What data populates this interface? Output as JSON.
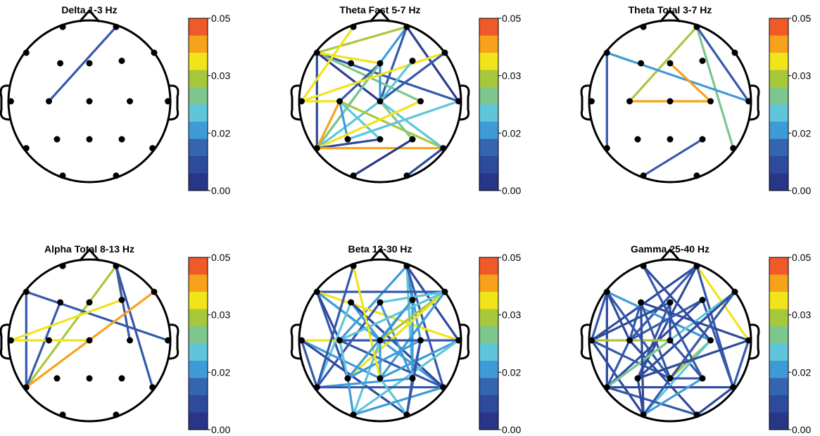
{
  "colorbar": {
    "ticks": [
      "0.05",
      "0.03",
      "0.02",
      "0.00"
    ],
    "colors": [
      "#f05a28",
      "#f7a21b",
      "#f1e41a",
      "#a8c83c",
      "#7dc68e",
      "#5fc5da",
      "#3f9bd8",
      "#3465b0",
      "#2d4a9c",
      "#273686"
    ]
  },
  "node_color": "#000000",
  "panels": [
    {
      "title": "Delta 1-3 Hz",
      "edges": [
        {
          "a": 1,
          "b": 8,
          "c": "#3458ac"
        }
      ]
    },
    {
      "title": "Theta Fast 5-7 Hz",
      "edges": [
        {
          "a": 1,
          "b": 11,
          "c": "#2d3c90"
        },
        {
          "a": 1,
          "b": 12,
          "c": "#3f9bd8"
        },
        {
          "a": 1,
          "b": 9,
          "c": "#3458ac"
        },
        {
          "a": 1,
          "b": 2,
          "c": "#a8c83c"
        },
        {
          "a": 2,
          "b": 12,
          "c": "#2d4a9c"
        },
        {
          "a": 2,
          "b": 11,
          "c": "#3458ac"
        },
        {
          "a": 2,
          "b": 10,
          "c": "#7dc68e"
        },
        {
          "a": 2,
          "b": 9,
          "c": "#2d3c90"
        },
        {
          "a": 2,
          "b": 4,
          "c": "#f1e41a"
        },
        {
          "a": 4,
          "b": 8,
          "c": "#3458ac"
        },
        {
          "a": 4,
          "b": 9,
          "c": "#3f9bd8"
        },
        {
          "a": 4,
          "b": 12,
          "c": "#7dc68e"
        },
        {
          "a": 6,
          "b": 12,
          "c": "#5fc5da"
        },
        {
          "a": 6,
          "b": 7,
          "c": "#f1e41a"
        },
        {
          "a": 6,
          "b": 9,
          "c": "#3458ac"
        },
        {
          "a": 8,
          "b": 12,
          "c": "#f7a21b"
        },
        {
          "a": 8,
          "b": 13,
          "c": "#3f9bd8"
        },
        {
          "a": 8,
          "b": 14,
          "c": "#5fc5da"
        },
        {
          "a": 8,
          "b": 16,
          "c": "#a8c83c"
        },
        {
          "a": 8,
          "b": 7,
          "c": "#f1e41a"
        },
        {
          "a": 9,
          "b": 15,
          "c": "#7dc68e"
        },
        {
          "a": 9,
          "b": 16,
          "c": "#5fc5da"
        },
        {
          "a": 10,
          "b": 12,
          "c": "#f1e41a"
        },
        {
          "a": 11,
          "b": 13,
          "c": "#5fc5da"
        },
        {
          "a": 12,
          "b": 14,
          "c": "#2d4a9c"
        },
        {
          "a": 12,
          "b": 16,
          "c": "#f7a21b"
        },
        {
          "a": 9,
          "b": 5,
          "c": "#5fc5da"
        },
        {
          "a": 15,
          "b": 17,
          "c": "#273686"
        },
        {
          "a": 16,
          "b": 18,
          "c": "#2d4a9c"
        },
        {
          "a": 0,
          "b": 7,
          "c": "#f1e41a"
        }
      ]
    },
    {
      "title": "Theta Total 3-7 Hz",
      "edges": [
        {
          "a": 1,
          "b": 8,
          "c": "#a8c83c"
        },
        {
          "a": 1,
          "b": 16,
          "c": "#7dc68e"
        },
        {
          "a": 1,
          "b": 11,
          "c": "#3458ac"
        },
        {
          "a": 2,
          "b": 12,
          "c": "#3458ac"
        },
        {
          "a": 2,
          "b": 11,
          "c": "#3f9bd8"
        },
        {
          "a": 4,
          "b": 10,
          "c": "#f7a21b"
        },
        {
          "a": 8,
          "b": 10,
          "c": "#f7a21b"
        },
        {
          "a": 15,
          "b": 17,
          "c": "#3458ac"
        }
      ]
    },
    {
      "title": "Alpha Total 8-13 Hz",
      "edges": [
        {
          "a": 1,
          "b": 5,
          "c": "#f1e41a"
        },
        {
          "a": 1,
          "b": 10,
          "c": "#3458ac"
        },
        {
          "a": 1,
          "b": 12,
          "c": "#a8c83c"
        },
        {
          "a": 1,
          "b": 16,
          "c": "#3458ac"
        },
        {
          "a": 2,
          "b": 12,
          "c": "#3458ac"
        },
        {
          "a": 2,
          "b": 11,
          "c": "#3458ac"
        },
        {
          "a": 3,
          "b": 12,
          "c": "#3458ac"
        },
        {
          "a": 5,
          "b": 7,
          "c": "#f1e41a"
        },
        {
          "a": 12,
          "b": 6,
          "c": "#f7a21b"
        },
        {
          "a": 7,
          "b": 9,
          "c": "#f1e41a"
        }
      ]
    },
    {
      "title": "Beta 13-30 Hz",
      "edges": [
        {
          "a": 1,
          "b": 5,
          "c": "#273686"
        },
        {
          "a": 1,
          "b": 10,
          "c": "#3f9bd8"
        },
        {
          "a": 1,
          "b": 11,
          "c": "#2d4a9c"
        },
        {
          "a": 1,
          "b": 15,
          "c": "#5fc5da"
        },
        {
          "a": 1,
          "b": 16,
          "c": "#3458ac"
        },
        {
          "a": 1,
          "b": 8,
          "c": "#3f9bd8"
        },
        {
          "a": 2,
          "b": 6,
          "c": "#3458ac"
        },
        {
          "a": 2,
          "b": 9,
          "c": "#5fc5da"
        },
        {
          "a": 2,
          "b": 11,
          "c": "#f1e41a"
        },
        {
          "a": 2,
          "b": 13,
          "c": "#3458ac"
        },
        {
          "a": 2,
          "b": 16,
          "c": "#3f9bd8"
        },
        {
          "a": 2,
          "b": 8,
          "c": "#2d4a9c"
        },
        {
          "a": 3,
          "b": 9,
          "c": "#3f9bd8"
        },
        {
          "a": 3,
          "b": 12,
          "c": "#5fc5da"
        },
        {
          "a": 3,
          "b": 16,
          "c": "#2d4a9c"
        },
        {
          "a": 4,
          "b": 12,
          "c": "#3458ac"
        },
        {
          "a": 4,
          "b": 15,
          "c": "#3f9bd8"
        },
        {
          "a": 4,
          "b": 6,
          "c": "#5fc5da"
        },
        {
          "a": 5,
          "b": 9,
          "c": "#3458ac"
        },
        {
          "a": 5,
          "b": 15,
          "c": "#3f9bd8"
        },
        {
          "a": 6,
          "b": 9,
          "c": "#a8c83c"
        },
        {
          "a": 6,
          "b": 13,
          "c": "#f1e41a"
        },
        {
          "a": 6,
          "b": 14,
          "c": "#3f9bd8"
        },
        {
          "a": 6,
          "b": 8,
          "c": "#5fc5da"
        },
        {
          "a": 7,
          "b": 10,
          "c": "#f1e41a"
        },
        {
          "a": 7,
          "b": 12,
          "c": "#3458ac"
        },
        {
          "a": 7,
          "b": 14,
          "c": "#3f9bd8"
        },
        {
          "a": 7,
          "b": 18,
          "c": "#2d4a9c"
        },
        {
          "a": 8,
          "b": 11,
          "c": "#3458ac"
        },
        {
          "a": 8,
          "b": 13,
          "c": "#5fc5da"
        },
        {
          "a": 8,
          "b": 16,
          "c": "#3458ac"
        },
        {
          "a": 9,
          "b": 14,
          "c": "#3f9bd8"
        },
        {
          "a": 9,
          "b": 17,
          "c": "#5fc5da"
        },
        {
          "a": 10,
          "b": 13,
          "c": "#3f9bd8"
        },
        {
          "a": 10,
          "b": 15,
          "c": "#3458ac"
        },
        {
          "a": 11,
          "b": 14,
          "c": "#3f9bd8"
        },
        {
          "a": 11,
          "b": 17,
          "c": "#5fc5da"
        },
        {
          "a": 12,
          "b": 15,
          "c": "#3f9bd8"
        },
        {
          "a": 12,
          "b": 16,
          "c": "#3458ac"
        },
        {
          "a": 13,
          "b": 17,
          "c": "#3f9bd8"
        },
        {
          "a": 14,
          "b": 18,
          "c": "#5fc5da"
        },
        {
          "a": 15,
          "b": 18,
          "c": "#3458ac"
        },
        {
          "a": 16,
          "b": 17,
          "c": "#3f9bd8"
        },
        {
          "a": 0,
          "b": 12,
          "c": "#3458ac"
        },
        {
          "a": 0,
          "b": 14,
          "c": "#f1e41a"
        },
        {
          "a": 5,
          "b": 13,
          "c": "#3f9bd8"
        },
        {
          "a": 10,
          "b": 18,
          "c": "#3458ac"
        }
      ]
    },
    {
      "title": "Gamma 25-40 Hz",
      "edges": [
        {
          "a": 1,
          "b": 7,
          "c": "#2d4a9c"
        },
        {
          "a": 1,
          "b": 8,
          "c": "#3458ac"
        },
        {
          "a": 1,
          "b": 11,
          "c": "#f1e41a"
        },
        {
          "a": 1,
          "b": 13,
          "c": "#2d4a9c"
        },
        {
          "a": 1,
          "b": 16,
          "c": "#3458ac"
        },
        {
          "a": 2,
          "b": 7,
          "c": "#3458ac"
        },
        {
          "a": 2,
          "b": 10,
          "c": "#3f9bd8"
        },
        {
          "a": 2,
          "b": 12,
          "c": "#2d4a9c"
        },
        {
          "a": 2,
          "b": 14,
          "c": "#3458ac"
        },
        {
          "a": 2,
          "b": 8,
          "c": "#2d4a9c"
        },
        {
          "a": 3,
          "b": 8,
          "c": "#3458ac"
        },
        {
          "a": 3,
          "b": 11,
          "c": "#2d4a9c"
        },
        {
          "a": 3,
          "b": 14,
          "c": "#3458ac"
        },
        {
          "a": 4,
          "b": 9,
          "c": "#2d4a9c"
        },
        {
          "a": 4,
          "b": 13,
          "c": "#3458ac"
        },
        {
          "a": 4,
          "b": 7,
          "c": "#2d4a9c"
        },
        {
          "a": 5,
          "b": 8,
          "c": "#3458ac"
        },
        {
          "a": 5,
          "b": 12,
          "c": "#2d4a9c"
        },
        {
          "a": 5,
          "b": 16,
          "c": "#3458ac"
        },
        {
          "a": 6,
          "b": 12,
          "c": "#5fc5da"
        },
        {
          "a": 6,
          "b": 14,
          "c": "#f7a21b"
        },
        {
          "a": 6,
          "b": 13,
          "c": "#2d4a9c"
        },
        {
          "a": 7,
          "b": 9,
          "c": "#a8c83c"
        },
        {
          "a": 7,
          "b": 14,
          "c": "#3458ac"
        },
        {
          "a": 7,
          "b": 17,
          "c": "#2d4a9c"
        },
        {
          "a": 8,
          "b": 12,
          "c": "#3458ac"
        },
        {
          "a": 8,
          "b": 18,
          "c": "#2d4a9c"
        },
        {
          "a": 9,
          "b": 12,
          "c": "#7dc68e"
        },
        {
          "a": 9,
          "b": 15,
          "c": "#3458ac"
        },
        {
          "a": 10,
          "b": 14,
          "c": "#a8c83c"
        },
        {
          "a": 10,
          "b": 17,
          "c": "#5fc5da"
        },
        {
          "a": 11,
          "b": 13,
          "c": "#2d4a9c"
        },
        {
          "a": 11,
          "b": 16,
          "c": "#3458ac"
        },
        {
          "a": 12,
          "b": 16,
          "c": "#2d4a9c"
        },
        {
          "a": 12,
          "b": 18,
          "c": "#3458ac"
        },
        {
          "a": 13,
          "b": 17,
          "c": "#2d4a9c"
        },
        {
          "a": 14,
          "b": 15,
          "c": "#3458ac"
        },
        {
          "a": 15,
          "b": 17,
          "c": "#3f9bd8"
        },
        {
          "a": 16,
          "b": 18,
          "c": "#2d4a9c"
        },
        {
          "a": 0,
          "b": 15,
          "c": "#3458ac"
        },
        {
          "a": 0,
          "b": 10,
          "c": "#2d4a9c"
        },
        {
          "a": 6,
          "b": 17,
          "c": "#3458ac"
        },
        {
          "a": 3,
          "b": 17,
          "c": "#2d4a9c"
        }
      ]
    }
  ]
}
